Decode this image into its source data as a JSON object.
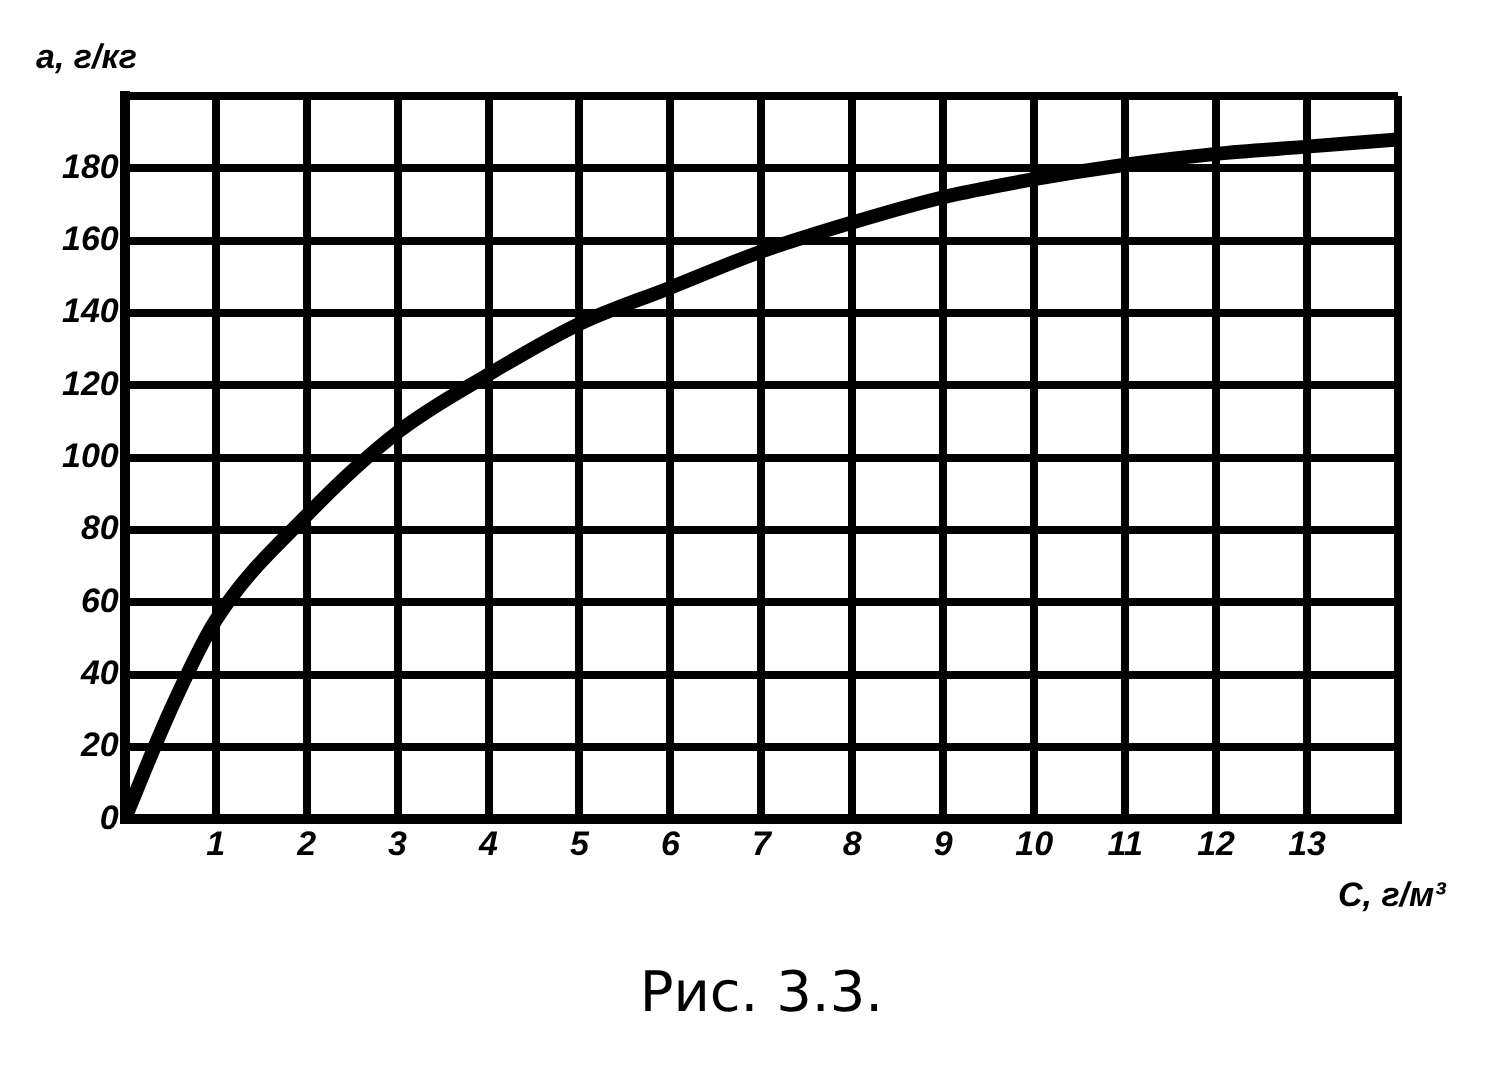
{
  "chart_data": {
    "type": "line",
    "xlabel": "C, г/м³",
    "ylabel": "a, г/кг",
    "annotations": [
      "Рис. 3.3."
    ],
    "x": [
      0,
      0.5,
      1,
      2,
      3,
      4,
      5,
      6,
      7,
      8,
      9,
      10,
      11,
      12,
      13,
      14
    ],
    "series": [
      {
        "color": "#000000",
        "values": [
          0,
          30,
          55,
          84,
          107,
          123,
          137,
          147,
          157,
          165,
          172,
          177,
          181,
          184,
          186,
          188
        ]
      }
    ],
    "xlim": [
      0,
      14
    ],
    "xticks": [
      {
        "value": 0,
        "label": null
      },
      1,
      2,
      3,
      4,
      5,
      6,
      7,
      8,
      9,
      10,
      11,
      12,
      13,
      {
        "value": 14,
        "label": null
      }
    ],
    "ylim": [
      0,
      200
    ],
    "yticks": [
      0,
      20,
      40,
      60,
      80,
      100,
      120,
      140,
      160,
      180,
      {
        "value": 200,
        "label": null
      }
    ],
    "grid": true,
    "legend": false,
    "marker": "none",
    "line_style": "solid"
  }
}
